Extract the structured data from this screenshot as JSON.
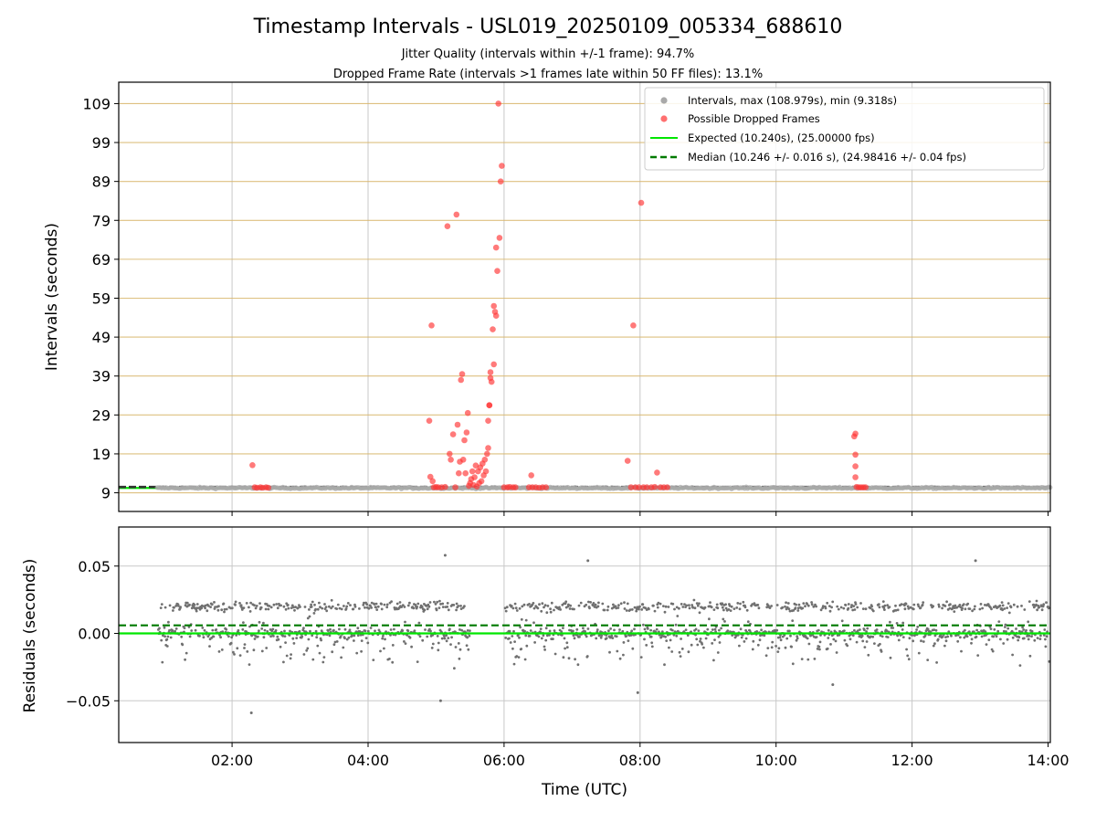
{
  "chart_data": [
    {
      "type": "scatter",
      "title": "Timestamp Intervals - USL019_20250109_005334_688610",
      "subtitle_lines": [
        "Jitter Quality (intervals within +/-1 frame): 94.7%",
        "Dropped Frame Rate (intervals >1 frames late within 50 FF files): 13.1%"
      ],
      "xlabel": "",
      "ylabel": "Intervals (seconds)",
      "xlim": [
        "00:20",
        "14:02"
      ],
      "ylim": [
        4.2,
        114.5
      ],
      "yticks": [
        9,
        19,
        29,
        39,
        49,
        59,
        69,
        79,
        89,
        99,
        109
      ],
      "grid": true,
      "legend": {
        "placement": "top-right",
        "entries": [
          {
            "label": "Intervals, max (108.979s), min (9.318s)",
            "marker": "dot",
            "color": "#a9a9a9"
          },
          {
            "label": "Possible Dropped Frames",
            "marker": "dot",
            "color": "#ff4c4c"
          },
          {
            "label": "Expected (10.240s), (25.00000 fps)",
            "marker": "line",
            "color": "#00e600"
          },
          {
            "label": "Median (10.246 +/- 0.016 s), (24.98416 +/- 0.04 fps)",
            "marker": "dashed",
            "color": "#007a00"
          }
        ]
      },
      "expected_interval": 10.24,
      "median_interval": 10.246,
      "normal_interval_range": [
        "00:54",
        "14:02"
      ],
      "series": [
        {
          "name": "Possible Dropped Frames",
          "color": "#ff3333",
          "points": [
            [
              "02:18",
              16.1
            ],
            [
              "02:20",
              10.4
            ],
            [
              "02:22",
              10.3
            ],
            [
              "02:25",
              10.4
            ],
            [
              "02:27",
              10.3
            ],
            [
              "02:30",
              10.4
            ],
            [
              "02:32",
              10.3
            ],
            [
              "04:54",
              27.5
            ],
            [
              "04:55",
              13.1
            ],
            [
              "04:56",
              52.0
            ],
            [
              "04:57",
              12.0
            ],
            [
              "04:58",
              10.4
            ],
            [
              "05:00",
              10.5
            ],
            [
              "05:02",
              10.4
            ],
            [
              "05:05",
              10.4
            ],
            [
              "05:08",
              10.5
            ],
            [
              "05:10",
              77.5
            ],
            [
              "05:12",
              19.0
            ],
            [
              "05:13",
              17.5
            ],
            [
              "05:15",
              24.0
            ],
            [
              "05:17",
              10.4
            ],
            [
              "05:18",
              80.5
            ],
            [
              "05:19",
              26.5
            ],
            [
              "05:20",
              14.0
            ],
            [
              "05:21",
              17.0
            ],
            [
              "05:22",
              38.0
            ],
            [
              "05:23",
              39.5
            ],
            [
              "05:24",
              17.5
            ],
            [
              "05:25",
              22.5
            ],
            [
              "05:26",
              14.0
            ],
            [
              "05:27",
              24.5
            ],
            [
              "05:28",
              29.5
            ],
            [
              "05:29",
              10.8
            ],
            [
              "05:30",
              11.5
            ],
            [
              "05:31",
              12.5
            ],
            [
              "05:32",
              14.5
            ],
            [
              "05:33",
              11.0
            ],
            [
              "05:34",
              13.0
            ],
            [
              "05:35",
              16.0
            ],
            [
              "05:36",
              10.6
            ],
            [
              "05:37",
              14.5
            ],
            [
              "05:38",
              11.5
            ],
            [
              "05:39",
              15.5
            ],
            [
              "05:40",
              12.0
            ],
            [
              "05:41",
              16.5
            ],
            [
              "05:42",
              13.5
            ],
            [
              "05:43",
              17.5
            ],
            [
              "05:44",
              14.5
            ],
            [
              "05:45",
              19.0
            ],
            [
              "05:46",
              20.5
            ],
            [
              "05:46",
              27.5
            ],
            [
              "05:47",
              31.5
            ],
            [
              "05:47",
              31.5
            ],
            [
              "05:48",
              38.5
            ],
            [
              "05:48",
              40.0
            ],
            [
              "05:49",
              37.5
            ],
            [
              "05:50",
              51.0
            ],
            [
              "05:51",
              57.0
            ],
            [
              "05:51",
              42.0
            ],
            [
              "05:52",
              55.5
            ],
            [
              "05:53",
              54.5
            ],
            [
              "05:53",
              72.0
            ],
            [
              "05:54",
              66.0
            ],
            [
              "05:55",
              109.0
            ],
            [
              "05:56",
              74.5
            ],
            [
              "05:57",
              89.0
            ],
            [
              "05:58",
              93.0
            ],
            [
              "06:00",
              10.4
            ],
            [
              "06:03",
              10.4
            ],
            [
              "06:05",
              10.5
            ],
            [
              "06:08",
              10.4
            ],
            [
              "06:10",
              10.4
            ],
            [
              "06:22",
              10.4
            ],
            [
              "06:24",
              13.5
            ],
            [
              "06:25",
              10.4
            ],
            [
              "06:28",
              10.4
            ],
            [
              "06:31",
              10.3
            ],
            [
              "06:34",
              10.4
            ],
            [
              "06:37",
              10.4
            ],
            [
              "07:49",
              17.2
            ],
            [
              "07:52",
              10.4
            ],
            [
              "07:54",
              52.0
            ],
            [
              "07:56",
              10.4
            ],
            [
              "07:59",
              10.4
            ],
            [
              "08:01",
              83.5
            ],
            [
              "08:03",
              10.4
            ],
            [
              "08:06",
              10.4
            ],
            [
              "08:10",
              10.4
            ],
            [
              "08:13",
              10.5
            ],
            [
              "08:15",
              14.2
            ],
            [
              "08:18",
              10.4
            ],
            [
              "08:21",
              10.4
            ],
            [
              "08:24",
              10.4
            ],
            [
              "11:09",
              23.5
            ],
            [
              "11:10",
              24.2
            ],
            [
              "11:10",
              18.8
            ],
            [
              "11:10",
              15.8
            ],
            [
              "11:10",
              13.0
            ],
            [
              "11:11",
              10.5
            ],
            [
              "11:13",
              10.4
            ],
            [
              "11:15",
              10.4
            ],
            [
              "11:17",
              10.4
            ],
            [
              "11:19",
              10.4
            ]
          ]
        }
      ]
    },
    {
      "type": "scatter",
      "title": "",
      "xlabel": "Time (UTC)",
      "ylabel": "Residuals (seconds)",
      "xlim": [
        "00:20",
        "14:02"
      ],
      "ylim": [
        -0.081,
        0.079
      ],
      "yticks": [
        -0.05,
        0.0,
        0.05
      ],
      "ytick_labels": [
        "−0.05",
        "0.00",
        "0.05"
      ],
      "xticks": [
        "02:00",
        "04:00",
        "06:00",
        "08:00",
        "10:00",
        "12:00",
        "14:00"
      ],
      "grid": true,
      "expected_residual": 0.0,
      "median_residual": 0.006,
      "residual_segments": [
        {
          "start": "00:55",
          "end": "05:30",
          "spread": [
            -0.045,
            0.058
          ]
        },
        {
          "start": "06:01",
          "end": "14:02",
          "spread": [
            -0.043,
            0.054
          ]
        }
      ],
      "notable_points": [
        [
          "02:17",
          -0.059
        ],
        [
          "05:04",
          -0.05
        ],
        [
          "05:08",
          0.058
        ],
        [
          "07:14",
          0.054
        ],
        [
          "07:58",
          -0.044
        ],
        [
          "12:56",
          0.054
        ],
        [
          "10:50",
          -0.038
        ]
      ]
    }
  ]
}
